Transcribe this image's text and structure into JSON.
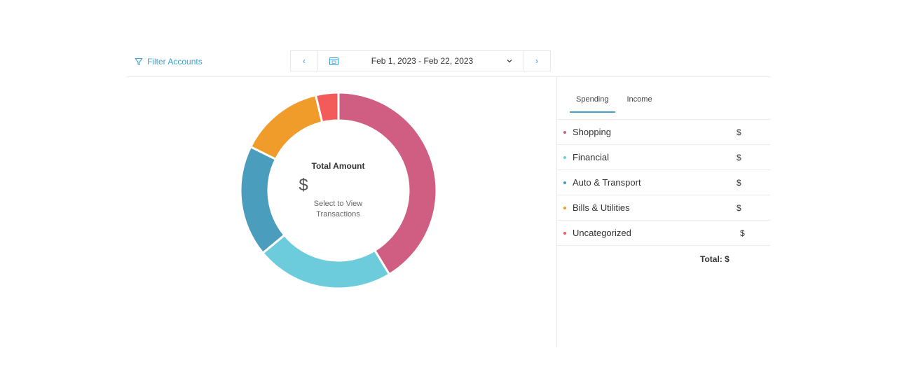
{
  "toolbar": {
    "filter_label": "Filter Accounts",
    "prev_label": "‹",
    "next_label": "›",
    "date_range": "Feb 1, 2023 - Feb 22, 2023"
  },
  "colors": {
    "accent": "#3fa3cf",
    "shopping": "#d05d82",
    "financial": "#6dccdc",
    "auto_transport": "#4a9dbd",
    "bills_utilities": "#f09c2a",
    "uncategorized": "#f35b5b"
  },
  "chart_data": {
    "type": "pie",
    "categories": [
      "Shopping",
      "Financial",
      "Auto & Transport",
      "Bills & Utilities",
      "Uncategorized"
    ],
    "values": [
      41.0,
      22.5,
      18.2,
      13.8,
      3.7
    ],
    "colors": [
      "#d05d82",
      "#6dccdc",
      "#4a9dbd",
      "#f09c2a",
      "#f35b5b"
    ]
  },
  "summary": {
    "title": "Total Amount",
    "amount": "$",
    "hint": "Select to View Transactions"
  },
  "panel": {
    "tabs": [
      {
        "label": "Spending",
        "active": true
      },
      {
        "label": "Income",
        "active": false
      }
    ],
    "categories": [
      {
        "name": "Shopping",
        "amount": "$",
        "color": "#d05d82"
      },
      {
        "name": "Financial",
        "amount": "$",
        "color": "#6dccdc"
      },
      {
        "name": "Auto & Transport",
        "amount": "$",
        "color": "#4a9dbd"
      },
      {
        "name": "Bills & Utilities",
        "amount": "$",
        "color": "#f09c2a"
      },
      {
        "name": "Uncategorized",
        "amount": "$",
        "color": "#f35b5b"
      }
    ],
    "total_label": "Total: $"
  }
}
